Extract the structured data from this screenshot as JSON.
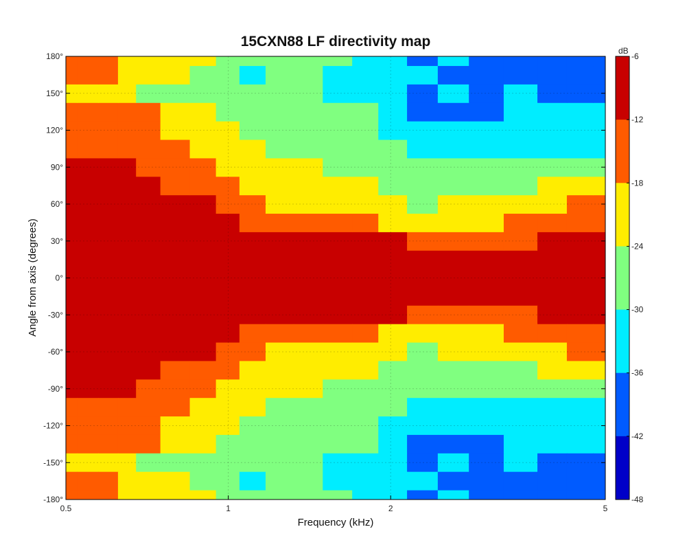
{
  "chart_data": {
    "type": "heatmap",
    "title": "15CXN88 LF directivity map",
    "xlabel": "Frequency (kHz)",
    "ylabel": "Angle from axis (degrees)",
    "x_scale": "log",
    "xlim": [
      0.5,
      5
    ],
    "ylim": [
      -180,
      180
    ],
    "x_ticks": [
      0.5,
      1,
      2,
      5
    ],
    "x_tick_labels": [
      "0.5",
      "1",
      "2",
      "5"
    ],
    "y_ticks": [
      180,
      150,
      120,
      90,
      60,
      30,
      0,
      -30,
      -60,
      -90,
      -120,
      -150,
      -180
    ],
    "y_tick_labels": [
      "180°",
      "150°",
      "120°",
      "90°",
      "60°",
      "30°",
      "0°",
      "-30°",
      "-60°",
      "-90°",
      "-120°",
      "-150°",
      "-180°"
    ],
    "grid": true,
    "colorbar": {
      "unit_label": "dB",
      "min": -48,
      "max": -6,
      "ticks": [
        -6,
        -12,
        -18,
        -24,
        -30,
        -36,
        -42,
        -48
      ],
      "tick_labels": [
        "-6",
        "-12",
        "-18",
        "-24",
        "-30",
        "-36",
        "-42",
        "-48"
      ],
      "colormap": "jet"
    },
    "symmetric_about_zero": true,
    "frequencies_khz": [
      0.5,
      0.55,
      0.6,
      0.65,
      0.7,
      0.8,
      0.9,
      1.0,
      1.1,
      1.25,
      1.4,
      1.6,
      1.8,
      2.0,
      2.3,
      2.6,
      3.0,
      3.5,
      4.0,
      4.5,
      5.0
    ],
    "angles_deg": [
      0,
      15,
      30,
      45,
      60,
      75,
      90,
      105,
      120,
      135,
      150,
      165,
      180
    ],
    "levels_db": [
      [
        -6,
        -6,
        -6,
        -6,
        -6,
        -6,
        -6,
        -6,
        -6,
        -6,
        -6,
        -6,
        -6,
        -6,
        -6,
        -6,
        -6,
        -6,
        -6,
        -6,
        -6
      ],
      [
        -6,
        -6,
        -6,
        -6,
        -6,
        -6,
        -6,
        -6,
        -6,
        -6,
        -6,
        -6,
        -7,
        -7,
        -7,
        -8,
        -8,
        -8,
        -8,
        -7,
        -7
      ],
      [
        -6,
        -6,
        -6,
        -6,
        -6,
        -6,
        -6,
        -6,
        -8,
        -8,
        -9,
        -10,
        -11,
        -12,
        -13,
        -13,
        -14,
        -13,
        -11,
        -10,
        -10
      ],
      [
        -6,
        -6,
        -6,
        -6,
        -6,
        -6,
        -7,
        -10,
        -14,
        -15,
        -16,
        -17,
        -18,
        -19,
        -20,
        -19,
        -20,
        -18,
        -15,
        -14,
        -13
      ],
      [
        -6,
        -6,
        -7,
        -8,
        -8,
        -9,
        -12,
        -15,
        -18,
        -20,
        -20,
        -22,
        -21,
        -22,
        -25,
        -24,
        -24,
        -22,
        -19,
        -18,
        -18
      ],
      [
        -9,
        -10,
        -11,
        -11,
        -11,
        -13,
        -16,
        -18,
        -21,
        -23,
        -24,
        -23,
        -24,
        -26,
        -27,
        -27,
        -28,
        -27,
        -24,
        -21,
        -23
      ],
      [
        -10,
        -10,
        -10,
        -12,
        -13,
        -15,
        -17,
        -20,
        -23,
        -23,
        -24,
        -25,
        -27,
        -28,
        -29,
        -29,
        -30,
        -29,
        -28,
        -26,
        -26
      ],
      [
        -15,
        -14,
        -13,
        -14,
        -15,
        -17,
        -20,
        -22,
        -24,
        -26,
        -27,
        -28,
        -28,
        -30,
        -32,
        -33,
        -33,
        -33,
        -31,
        -31,
        -31
      ],
      [
        -17,
        -17,
        -16,
        -18,
        -18,
        -19,
        -22,
        -24,
        -26,
        -30,
        -28,
        -27,
        -29,
        -32,
        -35,
        -35,
        -36,
        -35,
        -33,
        -32,
        -31
      ],
      [
        -17,
        -16,
        -17,
        -18,
        -18,
        -20,
        -24,
        -27,
        -26,
        -27,
        -25,
        -29,
        -30,
        -34,
        -37,
        -38,
        -38,
        -36,
        -35,
        -33,
        -34
      ],
      [
        -21,
        -22,
        -23,
        -24,
        -25,
        -26,
        -27,
        -29,
        -26,
        -27,
        -28,
        -31,
        -32,
        -34,
        -37,
        -36,
        -37,
        -36,
        -38,
        -39,
        -40
      ],
      [
        -17,
        -17,
        -18,
        -20,
        -21,
        -24,
        -26,
        -28,
        -31,
        -27,
        -28,
        -33,
        -33,
        -36,
        -36,
        -40,
        -42,
        -38,
        -38,
        -40,
        -41
      ],
      [
        -13,
        -18,
        -17,
        -19,
        -20,
        -21,
        -23,
        -26,
        -27,
        -28,
        -27,
        -30,
        -31,
        -34,
        -37,
        -36,
        -41,
        -39,
        -38,
        -42,
        -40
      ]
    ]
  }
}
